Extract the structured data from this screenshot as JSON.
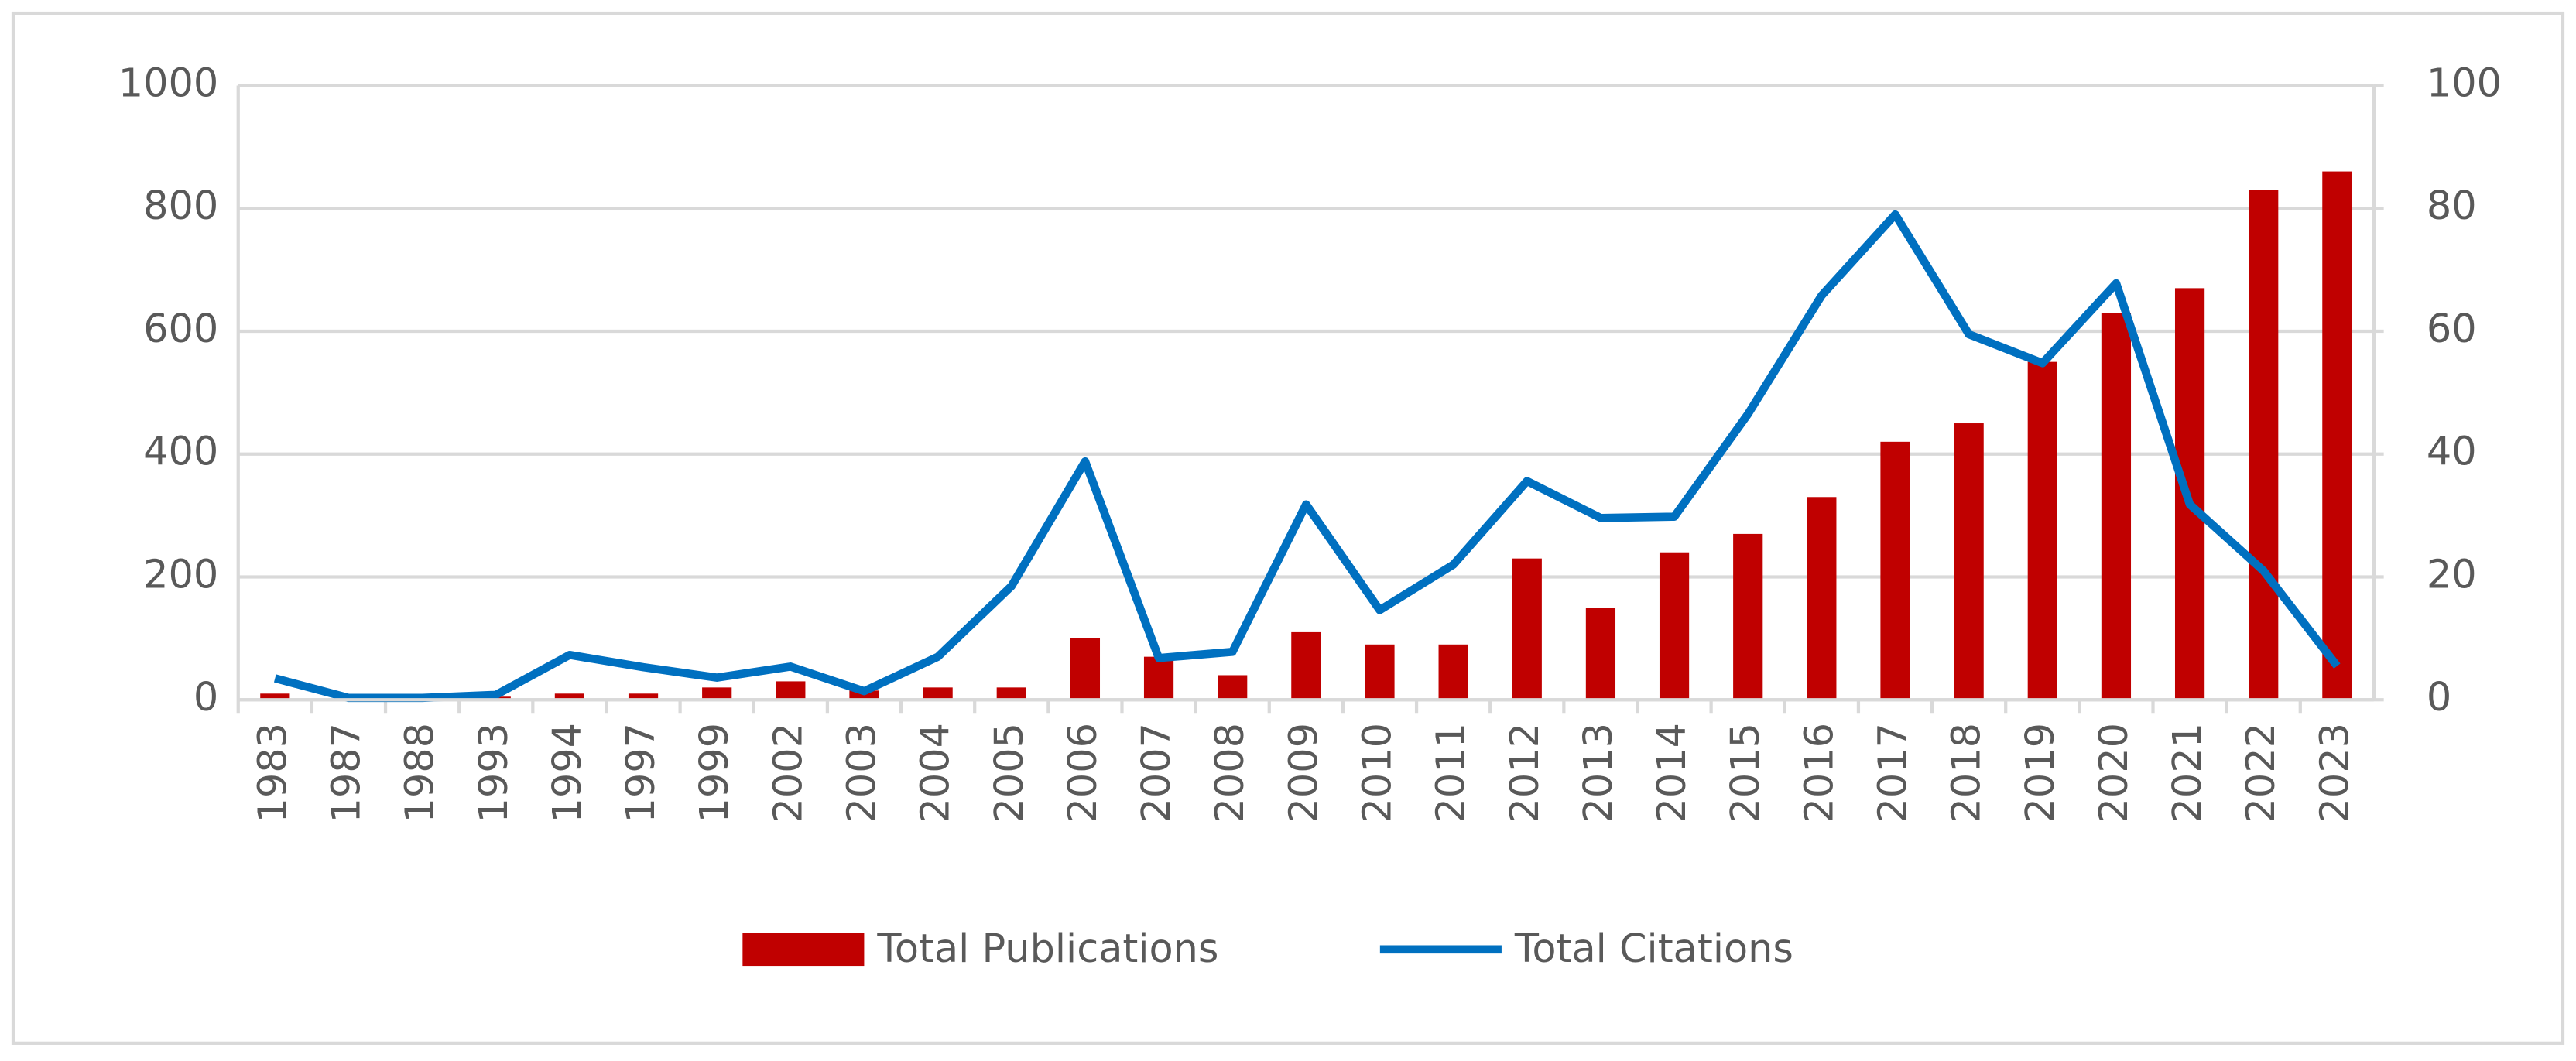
{
  "chart_data": {
    "type": "bar-line",
    "categories": [
      "1983",
      "1987",
      "1988",
      "1993",
      "1994",
      "1997",
      "1999",
      "2002",
      "2003",
      "2004",
      "2005",
      "2006",
      "2007",
      "2008",
      "2009",
      "2010",
      "2011",
      "2012",
      "2013",
      "2014",
      "2015",
      "2016",
      "2017",
      "2018",
      "2019",
      "2020",
      "2021",
      "2022",
      "2023"
    ],
    "series": [
      {
        "name": "Total Publications",
        "type": "bar",
        "color": "#c00000",
        "axis": "y",
        "values": [
          10,
          0,
          0,
          5,
          10,
          10,
          20,
          30,
          15,
          20,
          20,
          100,
          70,
          40,
          110,
          90,
          90,
          230,
          150,
          240,
          270,
          330,
          420,
          450,
          550,
          630,
          670,
          830,
          860
        ]
      },
      {
        "name": "Total Citations",
        "type": "line",
        "color": "#0070c0",
        "axis": "y2",
        "values": [
          3.5,
          0.3,
          0.3,
          0.8,
          7.3,
          5.3,
          3.6,
          5.4,
          1.4,
          7,
          18.5,
          38.8,
          6.8,
          7.8,
          31.8,
          14.6,
          22,
          35.6,
          29.6,
          29.8,
          46.5,
          65.8,
          79,
          59.5,
          54.8,
          67.8,
          31.8,
          21,
          5.5
        ]
      }
    ],
    "ylim": [
      0,
      1000
    ],
    "yticks": [
      0,
      200,
      400,
      600,
      800,
      1000
    ],
    "y2lim": [
      0,
      100
    ],
    "y2ticks": [
      0,
      20,
      40,
      60,
      80,
      100
    ],
    "grid": true,
    "legend": "bottom"
  }
}
